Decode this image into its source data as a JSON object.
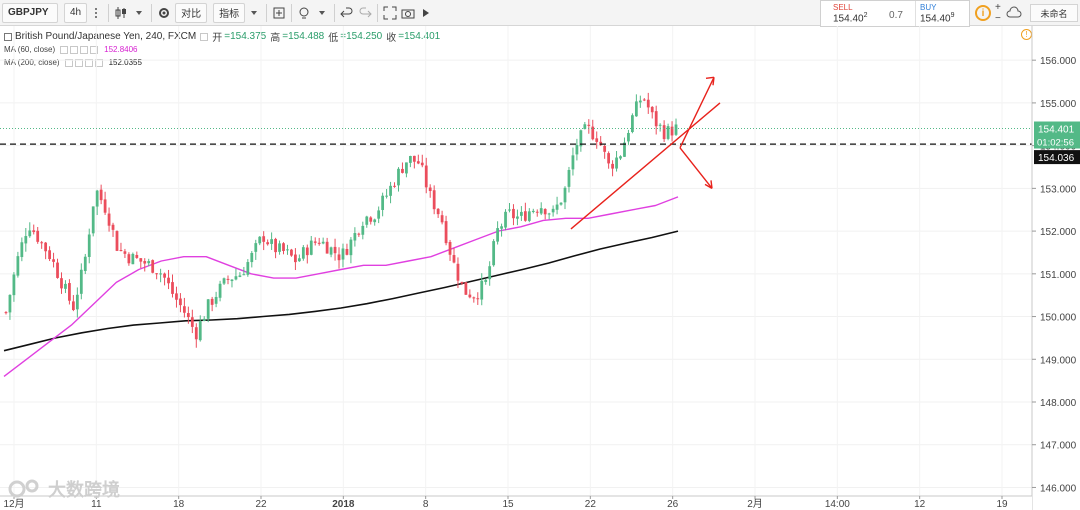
{
  "toolbar": {
    "symbol": "GBPJPY",
    "interval": "4h",
    "compare_label": "对比",
    "indicators_label": "指标",
    "layout_name": "未命名"
  },
  "trade": {
    "sell_label": "SELL",
    "sell_price": "154.40",
    "sell_sup": "2",
    "spread": "0.7",
    "buy_label": "BUY",
    "buy_price": "154.40",
    "buy_sup": "9"
  },
  "legend": {
    "title": "British Pound/Japanese Yen, 240, FXCM",
    "open_label": "开",
    "open": "=154.375",
    "high_label": "高",
    "high": "=154.488",
    "low_label": "低",
    "low": "=154.250",
    "close_label": "收",
    "close": "=154.401",
    "ma60_label": "MA (60, close)",
    "ma60_value": "152.8406",
    "ma200_label": "MA (200, close)",
    "ma200_value": "152.0355"
  },
  "colors": {
    "up": "#53b987",
    "down": "#eb4d5c",
    "ma60": "#e040e0",
    "ma200": "#111111",
    "annotation": "#e8221c",
    "price_badge": "#53b987"
  },
  "watermark": "大数跨境",
  "chart_data": {
    "type": "candlestick",
    "ylim": [
      145.8,
      156.8
    ],
    "yticks": [
      146.0,
      147.0,
      148.0,
      149.0,
      150.0,
      151.0,
      152.0,
      153.0,
      154.0,
      155.0,
      156.0
    ],
    "xticks": [
      "12月",
      "11",
      "18",
      "22",
      "2018",
      "8",
      "15",
      "22",
      "26",
      "2月",
      "14:00",
      "12",
      "19"
    ],
    "last_price": "154.401",
    "countdown": "01:02:56",
    "level_price": "154.036",
    "level_value": 154.036,
    "ohlc_path": [
      150.1,
      151.3,
      152.2,
      151.8,
      151.4,
      150.8,
      150.2,
      151.2,
      153.0,
      152.5,
      151.6,
      151.4,
      151.3,
      151.2,
      151.0,
      150.5,
      150.1,
      149.6,
      150.2,
      150.6,
      150.9,
      151.0,
      151.4,
      151.9,
      151.6,
      151.5,
      151.3,
      151.6,
      151.8,
      151.6,
      151.4,
      151.8,
      152.3,
      152.4,
      152.8,
      153.3,
      153.7,
      153.6,
      152.8,
      152.3,
      151.3,
      150.6,
      150.5,
      150.8,
      152.0,
      152.4,
      152.3,
      152.5,
      152.6,
      152.4,
      152.9,
      154.0,
      154.4,
      154.2,
      153.5,
      153.8,
      154.6,
      155.2,
      154.6,
      154.3,
      154.4
    ],
    "ma60": [
      148.6,
      149.0,
      149.4,
      149.8,
      150.3,
      150.8,
      151.1,
      151.3,
      151.4,
      151.4,
      151.2,
      151.0,
      150.9,
      150.9,
      151.0,
      151.1,
      151.2,
      151.2,
      151.3,
      151.4,
      151.6,
      151.8,
      152.0,
      152.1,
      152.25,
      152.3,
      152.3,
      152.4,
      152.5,
      152.6,
      152.8
    ],
    "ma200": [
      149.2,
      149.35,
      149.5,
      149.62,
      149.72,
      149.8,
      149.85,
      149.9,
      149.92,
      149.95,
      150.0,
      150.05,
      150.12,
      150.2,
      150.3,
      150.42,
      150.55,
      150.68,
      150.82,
      150.96,
      151.1,
      151.25,
      151.42,
      151.58,
      151.72,
      151.85,
      152.0
    ]
  }
}
